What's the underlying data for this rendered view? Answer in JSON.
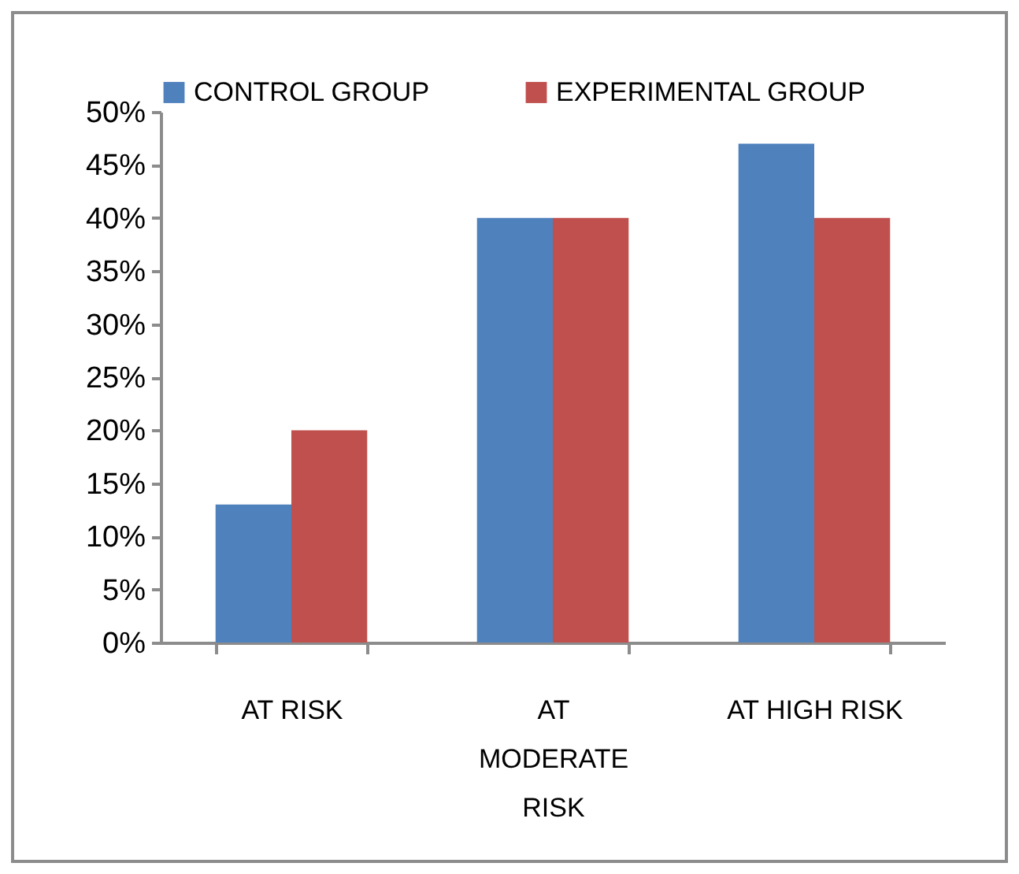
{
  "chart_data": {
    "type": "bar",
    "categories": [
      "AT RISK",
      "AT MODERATE RISK",
      "AT HIGH RISK"
    ],
    "series": [
      {
        "name": "CONTROL GROUP",
        "color": "#4f81bd",
        "values": [
          13,
          40,
          47
        ]
      },
      {
        "name": "EXPERIMENTAL GROUP",
        "color": "#c0504d",
        "values": [
          20,
          40,
          40
        ]
      }
    ],
    "ylim": [
      0,
      50
    ],
    "yticks": [
      {
        "value": 0,
        "label": "0%"
      },
      {
        "value": 5,
        "label": "5%"
      },
      {
        "value": 10,
        "label": "10%"
      },
      {
        "value": 15,
        "label": "15%"
      },
      {
        "value": 20,
        "label": "20%"
      },
      {
        "value": 25,
        "label": "25%"
      },
      {
        "value": 30,
        "label": "30%"
      },
      {
        "value": 35,
        "label": "35%"
      },
      {
        "value": 40,
        "label": "40%"
      },
      {
        "value": 45,
        "label": "45%"
      },
      {
        "value": 50,
        "label": "50%"
      }
    ],
    "legend": "top"
  }
}
